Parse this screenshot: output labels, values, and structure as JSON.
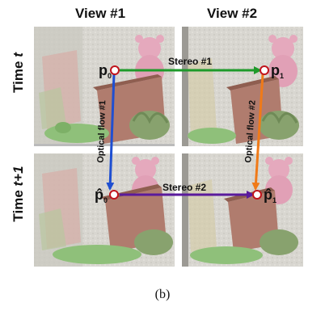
{
  "columns": [
    {
      "label": "View #1"
    },
    {
      "label": "View #2"
    }
  ],
  "rows": [
    {
      "prefix": "Time ",
      "var": "t"
    },
    {
      "prefix": "Time ",
      "var": "t+1"
    }
  ],
  "points": {
    "p0": {
      "base": "p",
      "sub": "0"
    },
    "p1": {
      "base": "p",
      "sub": "1"
    },
    "p0_hat": {
      "base": "p̂",
      "sub": "0"
    },
    "p1_hat": {
      "base": "p̂",
      "sub": "1"
    }
  },
  "edges": {
    "stereo1": {
      "label": "Stereo #1",
      "color": "#1e9a2a"
    },
    "stereo2": {
      "label": "Stereo #2",
      "color": "#5a1a9c"
    },
    "flow1": {
      "label": "Optical flow #1",
      "color": "#1f4fd1"
    },
    "flow2": {
      "label": "Optical flow #2",
      "color": "#f07a18"
    }
  },
  "colors": {
    "point_stroke": "#c0141c"
  },
  "caption": "(b)"
}
